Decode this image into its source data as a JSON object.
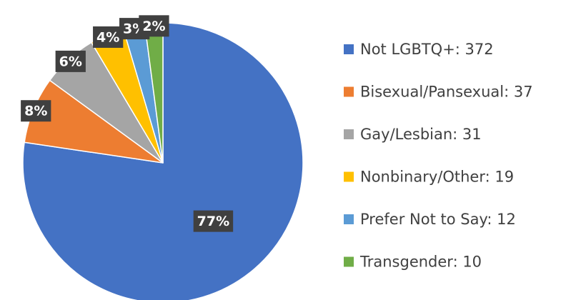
{
  "chart_data": {
    "type": "pie",
    "categories": [
      "Not LGBTQ+: 372",
      "Bisexual/Pansexual: 37",
      "Gay/Lesbian: 31",
      "Nonbinary/Other: 19",
      "Prefer Not to Say: 12",
      "Transgender: 10"
    ],
    "values": [
      372,
      37,
      31,
      19,
      12,
      10
    ],
    "percentages": [
      77,
      8,
      6,
      4,
      3,
      2
    ],
    "percentage_labels": [
      "77%",
      "8%",
      "6%",
      "4%",
      "3%",
      "2%"
    ],
    "colors": [
      "#4472c4",
      "#ed7d31",
      "#a5a5a5",
      "#ffc000",
      "#5b9bd5",
      "#70ad47"
    ],
    "legend": "right"
  }
}
